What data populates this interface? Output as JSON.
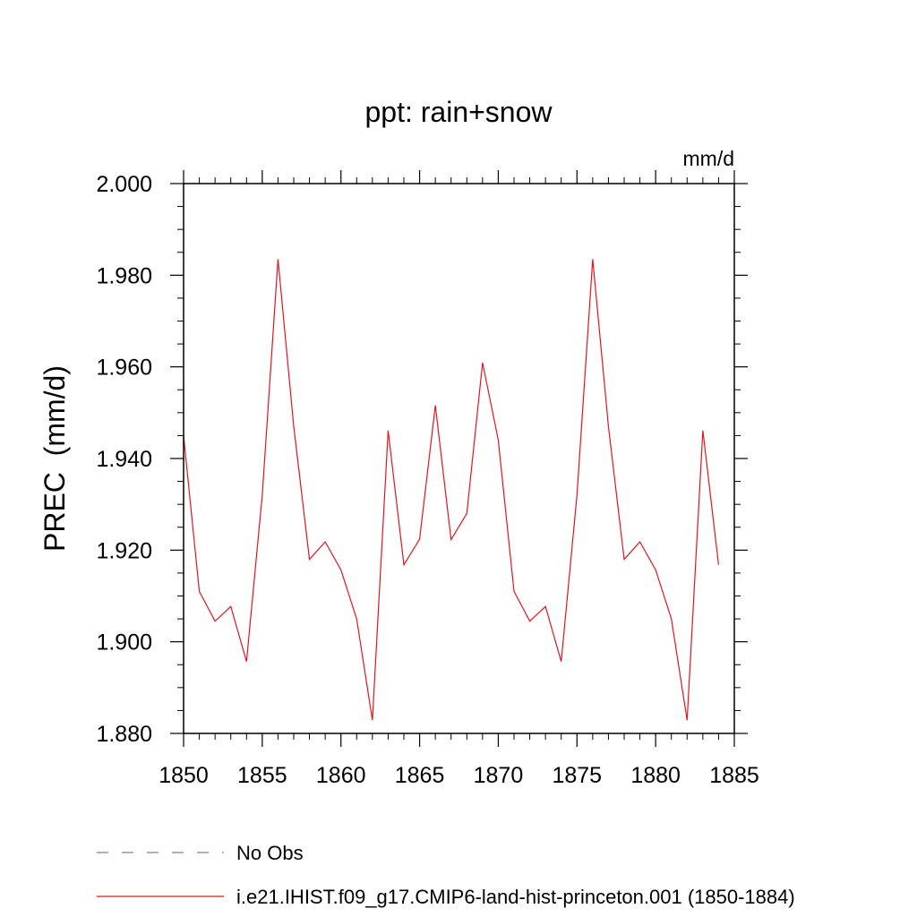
{
  "chart_data": {
    "type": "line",
    "title": "ppt: rain+snow",
    "units_label": "mm/d",
    "ylabel": "PREC  (mm/d)",
    "xlabel": "",
    "xlim": [
      1850,
      1885
    ],
    "ylim": [
      1.88,
      2.0
    ],
    "x_ticks": [
      1850,
      1855,
      1860,
      1865,
      1870,
      1875,
      1880,
      1885
    ],
    "x_tick_labels": [
      "1850",
      "1855",
      "1860",
      "1865",
      "1870",
      "1875",
      "1880",
      "1885"
    ],
    "y_ticks": [
      1.88,
      1.9,
      1.92,
      1.94,
      1.96,
      1.98,
      2.0
    ],
    "y_tick_labels": [
      "1.880",
      "1.900",
      "1.920",
      "1.940",
      "1.960",
      "1.980",
      "2.000"
    ],
    "grid": false,
    "legend_position": "bottom",
    "colors": {
      "series": "#e8141c",
      "no_obs": "#8877bb"
    },
    "legend": [
      {
        "label": "No Obs",
        "style": "dashed",
        "color": "#8877bb"
      },
      {
        "label": "i.e21.IHIST.f09_g17.CMIP6-land-hist-princeton.001 (1850-1884)",
        "style": "solid",
        "color": "#e8141c"
      }
    ],
    "series": [
      {
        "name": "i.e21.IHIST.f09_g17.CMIP6-land-hist-princeton.001 (1850-1884)",
        "x": [
          1850,
          1851,
          1852,
          1853,
          1854,
          1855,
          1856,
          1857,
          1858,
          1859,
          1860,
          1861,
          1862,
          1863,
          1864,
          1865,
          1866,
          1867,
          1868,
          1869,
          1870,
          1871,
          1872,
          1873,
          1874,
          1875,
          1876,
          1877,
          1878,
          1879,
          1880,
          1881,
          1882,
          1883,
          1884
        ],
        "values": [
          1.945,
          1.911,
          1.9045,
          1.9077,
          1.8957,
          1.932,
          1.9835,
          1.947,
          1.918,
          1.9218,
          1.9157,
          1.905,
          1.8829,
          1.9461,
          1.9168,
          1.9224,
          1.9516,
          1.9223,
          1.928,
          1.9609,
          1.944,
          1.911,
          1.9045,
          1.9077,
          1.8957,
          1.932,
          1.9835,
          1.947,
          1.918,
          1.9218,
          1.9157,
          1.905,
          1.8829,
          1.9461,
          1.9168
        ]
      }
    ]
  }
}
